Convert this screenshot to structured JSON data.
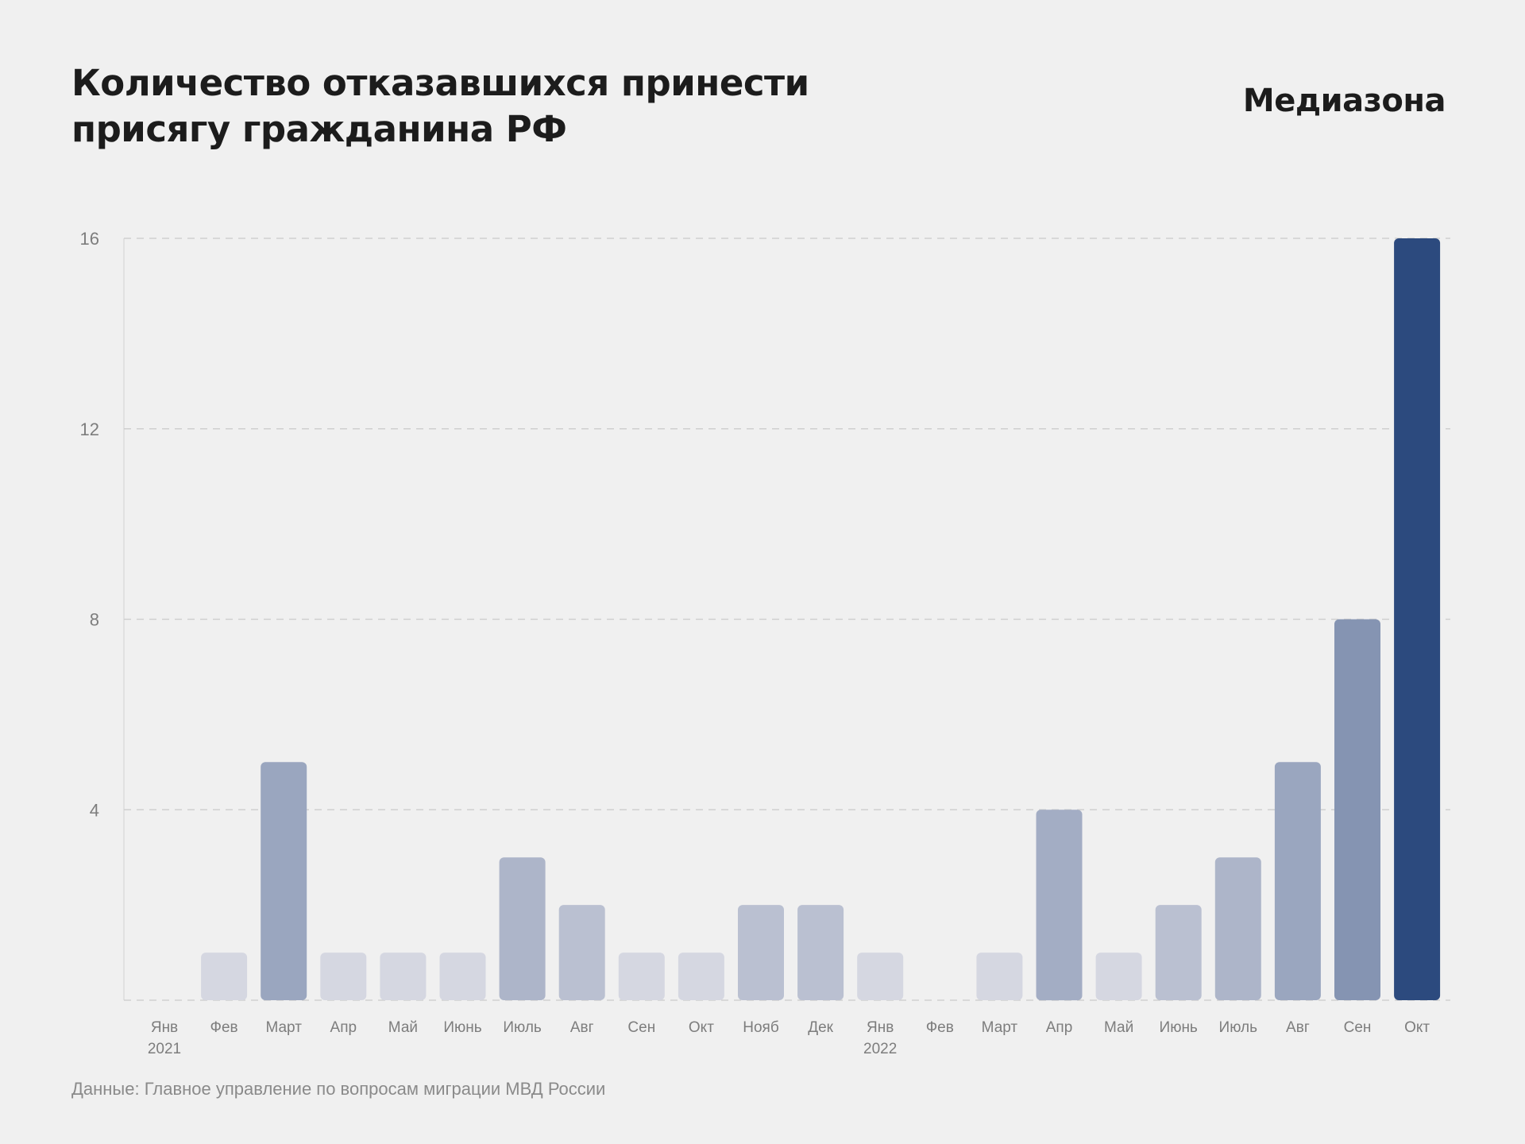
{
  "header": {
    "title_lines": [
      "Количество отказавшихся принести",
      "присягу гражданина РФ"
    ],
    "brand": "Медиазона"
  },
  "footer": {
    "source": "Данные: Главное управление по вопросам миграции МВД России"
  },
  "colors": {
    "background": "#f0f0f0",
    "bar_light": "#d5d7e1",
    "bar_dark": "#2c4a7e",
    "grid": "#cfcfcf",
    "axis": "#dcdcdc",
    "text_muted": "#7d7d7d"
  },
  "chart_data": {
    "type": "bar",
    "title": "Количество отказавшихся принести присягу гражданина РФ",
    "xlabel": "",
    "ylabel": "",
    "ylim": [
      0,
      16
    ],
    "yticks": [
      4,
      8,
      12,
      16
    ],
    "grid": true,
    "categories": [
      "Янв",
      "Фев",
      "Март",
      "Апр",
      "Май",
      "Июнь",
      "Июль",
      "Авг",
      "Сен",
      "Окт",
      "Нояб",
      "Дек",
      "Янв",
      "Фев",
      "Март",
      "Апр",
      "Май",
      "Июнь",
      "Июль",
      "Авг",
      "Сен",
      "Окт"
    ],
    "category_years": [
      "2021",
      "",
      "",
      "",
      "",
      "",
      "",
      "",
      "",
      "",
      "",
      "",
      "2022",
      "",
      "",
      "",
      "",
      "",
      "",
      "",
      "",
      ""
    ],
    "values": [
      0,
      1,
      5,
      1,
      1,
      1,
      3,
      2,
      1,
      1,
      2,
      2,
      1,
      0,
      1,
      4,
      1,
      2,
      3,
      5,
      8,
      16
    ]
  }
}
